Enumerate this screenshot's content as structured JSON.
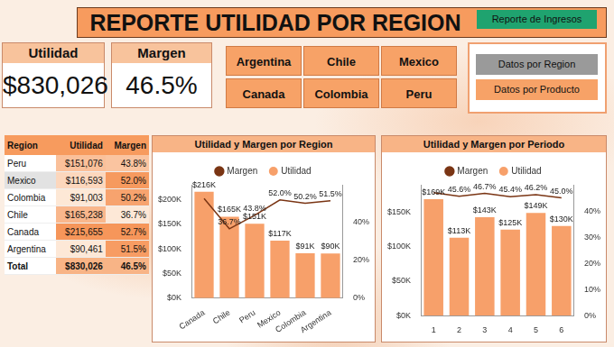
{
  "header": {
    "title": "REPORTE UTILIDAD POR REGION",
    "button": "Reporte de Ingresos"
  },
  "kpis": [
    {
      "label": "Utilidad",
      "value": "$830,026"
    },
    {
      "label": "Margen",
      "value": "46.5%"
    }
  ],
  "slicer": [
    "Argentina",
    "Chile",
    "Mexico",
    "Canada",
    "Colombia",
    "Peru"
  ],
  "nav": [
    "Datos por Region",
    "Datos por Producto"
  ],
  "table": {
    "columns": [
      "Region",
      "Utilidad",
      "Margen"
    ],
    "rows": [
      [
        "Peru",
        "$151,076",
        "43.8%"
      ],
      [
        "Mexico",
        "$116,593",
        "52.0%"
      ],
      [
        "Colombia",
        "$91,003",
        "50.2%"
      ],
      [
        "Chile",
        "$165,238",
        "36.7%"
      ],
      [
        "Canada",
        "$215,655",
        "52.7%"
      ],
      [
        "Argentina",
        "$90,461",
        "51.5%"
      ]
    ],
    "total": [
      "Total",
      "$830,026",
      "46.5%"
    ]
  },
  "chart_data": [
    {
      "type": "bar",
      "title": "Utilidad y Margen por Region",
      "categories": [
        "Canada",
        "Chile",
        "Peru",
        "Mexico",
        "Colombia",
        "Argentina"
      ],
      "series": [
        {
          "name": "Utilidad",
          "type": "bar",
          "color": "#f7a06a",
          "values": [
            215655,
            165238,
            151076,
            116593,
            91003,
            90461
          ],
          "value_labels": [
            "$216K",
            "$165K",
            "$151K",
            "$117K",
            "$91K",
            "$90K"
          ]
        },
        {
          "name": "Margen",
          "type": "line",
          "axis": "y2",
          "color": "#7a3514",
          "marker": "none",
          "values": [
            52.7,
            36.7,
            43.8,
            52.0,
            50.2,
            51.5
          ],
          "value_labels": [
            null,
            "36.7%",
            "43.8%",
            "52.0%",
            "50.2%",
            "51.5%"
          ]
        }
      ],
      "ylim": [
        0,
        230000
      ],
      "yticks": [
        {
          "value": 0,
          "label": "$0K"
        },
        {
          "value": 50000,
          "label": "$50K"
        },
        {
          "value": 100000,
          "label": "$100K"
        },
        {
          "value": 150000,
          "label": "$150K"
        },
        {
          "value": 200000,
          "label": "$200K"
        }
      ],
      "y2lim": [
        0,
        60
      ],
      "y2ticks": [
        {
          "value": 0,
          "label": "0%"
        },
        {
          "value": 20,
          "label": "20%"
        },
        {
          "value": 40,
          "label": "40%"
        }
      ],
      "grid": false,
      "legend": "top",
      "data_labels": true
    },
    {
      "type": "bar",
      "title": "Utilidad y Margen por Periodo",
      "categories": [
        "1",
        "2",
        "3",
        "4",
        "5",
        "6"
      ],
      "series": [
        {
          "name": "Utilidad",
          "type": "bar",
          "color": "#f7a06a",
          "values": [
            169000,
            113000,
            143000,
            125000,
            149000,
            130000
          ],
          "value_labels": [
            "$169K",
            "$113K",
            "$143K",
            "$125K",
            "$149K",
            "$130K"
          ]
        },
        {
          "name": "Margen",
          "type": "line",
          "axis": "y2",
          "color": "#7a3514",
          "marker": "none",
          "values": [
            47.0,
            45.6,
            46.7,
            45.4,
            46.2,
            45.0
          ],
          "value_labels": [
            null,
            "45.6%",
            "46.7%",
            "45.4%",
            "46.2%",
            "45.0%"
          ]
        }
      ],
      "ylim": [
        0,
        190000
      ],
      "yticks": [
        {
          "value": 0,
          "label": "$0K"
        },
        {
          "value": 50000,
          "label": "$50K"
        },
        {
          "value": 100000,
          "label": "$100K"
        },
        {
          "value": 150000,
          "label": "$150K"
        }
      ],
      "y2lim": [
        0,
        50
      ],
      "y2ticks": [
        {
          "value": 0,
          "label": "0%"
        },
        {
          "value": 10,
          "label": "10%"
        },
        {
          "value": 20,
          "label": "20%"
        },
        {
          "value": 30,
          "label": "30%"
        },
        {
          "value": 40,
          "label": "40%"
        }
      ],
      "grid": false,
      "legend": "top",
      "data_labels": true
    }
  ]
}
